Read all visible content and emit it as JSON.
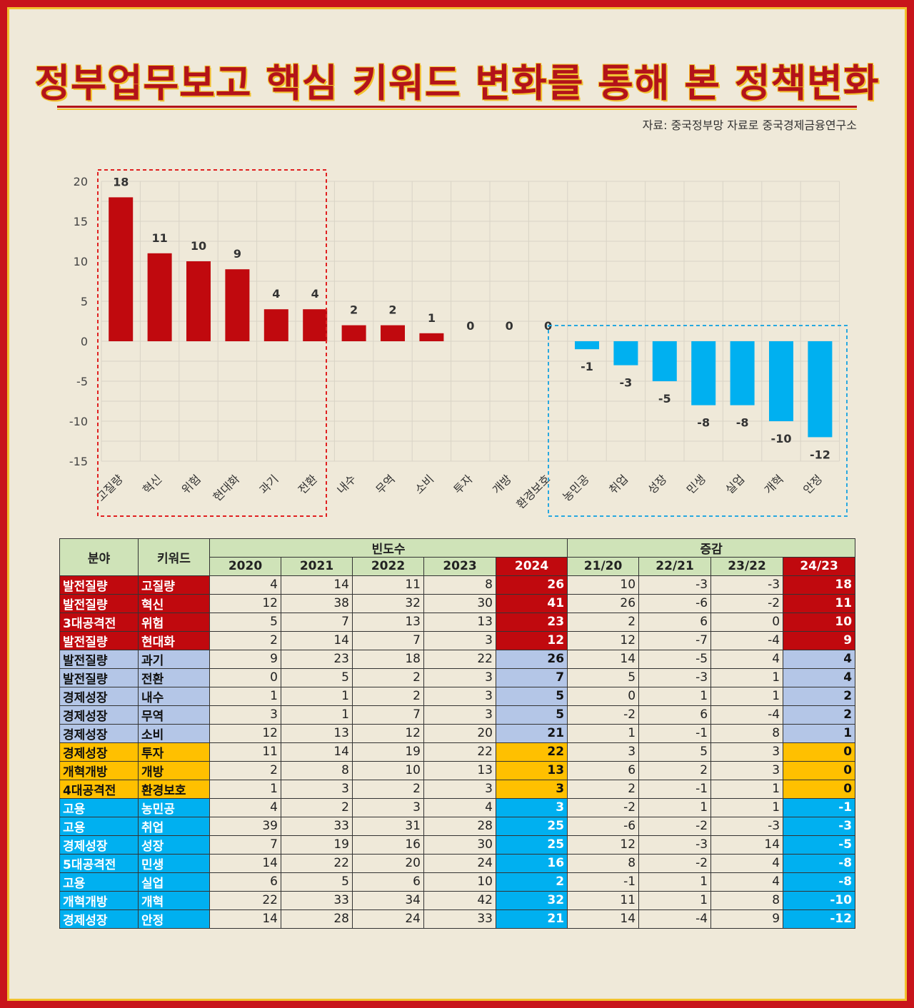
{
  "title": "정부업무보고 핵심 키워드 변화를 통해 본 정책변화",
  "source": "자료: 중국정부망 자료로 중국경제금융연구소",
  "colors": {
    "positive": "#c0090e",
    "negative": "#00b0f0",
    "red": "#c0090e",
    "blue": "#b4c6e7",
    "gold": "#ffc000",
    "cyan": "#00b0f0"
  },
  "chart_data": {
    "type": "bar",
    "categories": [
      "고질량",
      "혁신",
      "위험",
      "현대화",
      "과기",
      "전환",
      "내수",
      "무역",
      "소비",
      "투자",
      "개방",
      "환경보호",
      "농민공",
      "취업",
      "성장",
      "민생",
      "실업",
      "개혁",
      "안정"
    ],
    "values": [
      18,
      11,
      10,
      9,
      4,
      4,
      2,
      2,
      1,
      0,
      0,
      0,
      -1,
      -3,
      -5,
      -8,
      -8,
      -10,
      -12
    ],
    "yticks": [
      20,
      15,
      10,
      5,
      0,
      -5,
      -10,
      -15
    ],
    "ylim": [
      -15,
      20
    ],
    "grid": true
  },
  "table": {
    "header": {
      "field": "분야",
      "keyword": "키워드",
      "freq": "빈도수",
      "change": "증감"
    },
    "years": [
      "2020",
      "2021",
      "2022",
      "2023",
      "2024"
    ],
    "diffs": [
      "21/20",
      "22/21",
      "23/22",
      "24/23"
    ],
    "rows": [
      {
        "field": "발전질량",
        "keyword": "고질량",
        "vals": [
          "4",
          "14",
          "11",
          "8",
          "26"
        ],
        "d": [
          "10",
          "-3",
          "-3",
          "18"
        ],
        "color": "red"
      },
      {
        "field": "발전질량",
        "keyword": "혁신",
        "vals": [
          "12",
          "38",
          "32",
          "30",
          "41"
        ],
        "d": [
          "26",
          "-6",
          "-2",
          "11"
        ],
        "color": "red"
      },
      {
        "field": "3대공격전",
        "keyword": "위험",
        "vals": [
          "5",
          "7",
          "13",
          "13",
          "23"
        ],
        "d": [
          "2",
          "6",
          "0",
          "10"
        ],
        "color": "red"
      },
      {
        "field": "발전질량",
        "keyword": "현대화",
        "vals": [
          "2",
          "14",
          "7",
          "3",
          "12"
        ],
        "d": [
          "12",
          "-7",
          "-4",
          "9"
        ],
        "color": "red"
      },
      {
        "field": "발전질량",
        "keyword": "과기",
        "vals": [
          "9",
          "23",
          "18",
          "22",
          "26"
        ],
        "d": [
          "14",
          "-5",
          "4",
          "4"
        ],
        "color": "blue"
      },
      {
        "field": "발전질량",
        "keyword": "전환",
        "vals": [
          "0",
          "5",
          "2",
          "3",
          "7"
        ],
        "d": [
          "5",
          "-3",
          "1",
          "4"
        ],
        "color": "blue"
      },
      {
        "field": "경제성장",
        "keyword": "내수",
        "vals": [
          "1",
          "1",
          "2",
          "3",
          "5"
        ],
        "d": [
          "0",
          "1",
          "1",
          "2"
        ],
        "color": "blue"
      },
      {
        "field": "경제성장",
        "keyword": "무역",
        "vals": [
          "3",
          "1",
          "7",
          "3",
          "5"
        ],
        "d": [
          "-2",
          "6",
          "-4",
          "2"
        ],
        "color": "blue"
      },
      {
        "field": "경제성장",
        "keyword": "소비",
        "vals": [
          "12",
          "13",
          "12",
          "20",
          "21"
        ],
        "d": [
          "1",
          "-1",
          "8",
          "1"
        ],
        "color": "blue"
      },
      {
        "field": "경제성장",
        "keyword": "투자",
        "vals": [
          "11",
          "14",
          "19",
          "22",
          "22"
        ],
        "d": [
          "3",
          "5",
          "3",
          "0"
        ],
        "color": "gold"
      },
      {
        "field": "개혁개방",
        "keyword": "개방",
        "vals": [
          "2",
          "8",
          "10",
          "13",
          "13"
        ],
        "d": [
          "6",
          "2",
          "3",
          "0"
        ],
        "color": "gold"
      },
      {
        "field": "4대공격전",
        "keyword": "환경보호",
        "vals": [
          "1",
          "3",
          "2",
          "3",
          "3"
        ],
        "d": [
          "2",
          "-1",
          "1",
          "0"
        ],
        "color": "gold"
      },
      {
        "field": "고용",
        "keyword": "농민공",
        "vals": [
          "4",
          "2",
          "3",
          "4",
          "3"
        ],
        "d": [
          "-2",
          "1",
          "1",
          "-1"
        ],
        "color": "cyan"
      },
      {
        "field": "고용",
        "keyword": "취업",
        "vals": [
          "39",
          "33",
          "31",
          "28",
          "25"
        ],
        "d": [
          "-6",
          "-2",
          "-3",
          "-3"
        ],
        "color": "cyan"
      },
      {
        "field": "경제성장",
        "keyword": "성장",
        "vals": [
          "7",
          "19",
          "16",
          "30",
          "25"
        ],
        "d": [
          "12",
          "-3",
          "14",
          "-5"
        ],
        "color": "cyan"
      },
      {
        "field": "5대공격전",
        "keyword": "민생",
        "vals": [
          "14",
          "22",
          "20",
          "24",
          "16"
        ],
        "d": [
          "8",
          "-2",
          "4",
          "-8"
        ],
        "color": "cyan"
      },
      {
        "field": "고용",
        "keyword": "실업",
        "vals": [
          "6",
          "5",
          "6",
          "10",
          "2"
        ],
        "d": [
          "-1",
          "1",
          "4",
          "-8"
        ],
        "color": "cyan"
      },
      {
        "field": "개혁개방",
        "keyword": "개혁",
        "vals": [
          "22",
          "33",
          "34",
          "42",
          "32"
        ],
        "d": [
          "11",
          "1",
          "8",
          "-10"
        ],
        "color": "cyan"
      },
      {
        "field": "경제성장",
        "keyword": "안정",
        "vals": [
          "14",
          "28",
          "24",
          "33",
          "21"
        ],
        "d": [
          "14",
          "-4",
          "9",
          "-12"
        ],
        "color": "cyan"
      }
    ]
  }
}
